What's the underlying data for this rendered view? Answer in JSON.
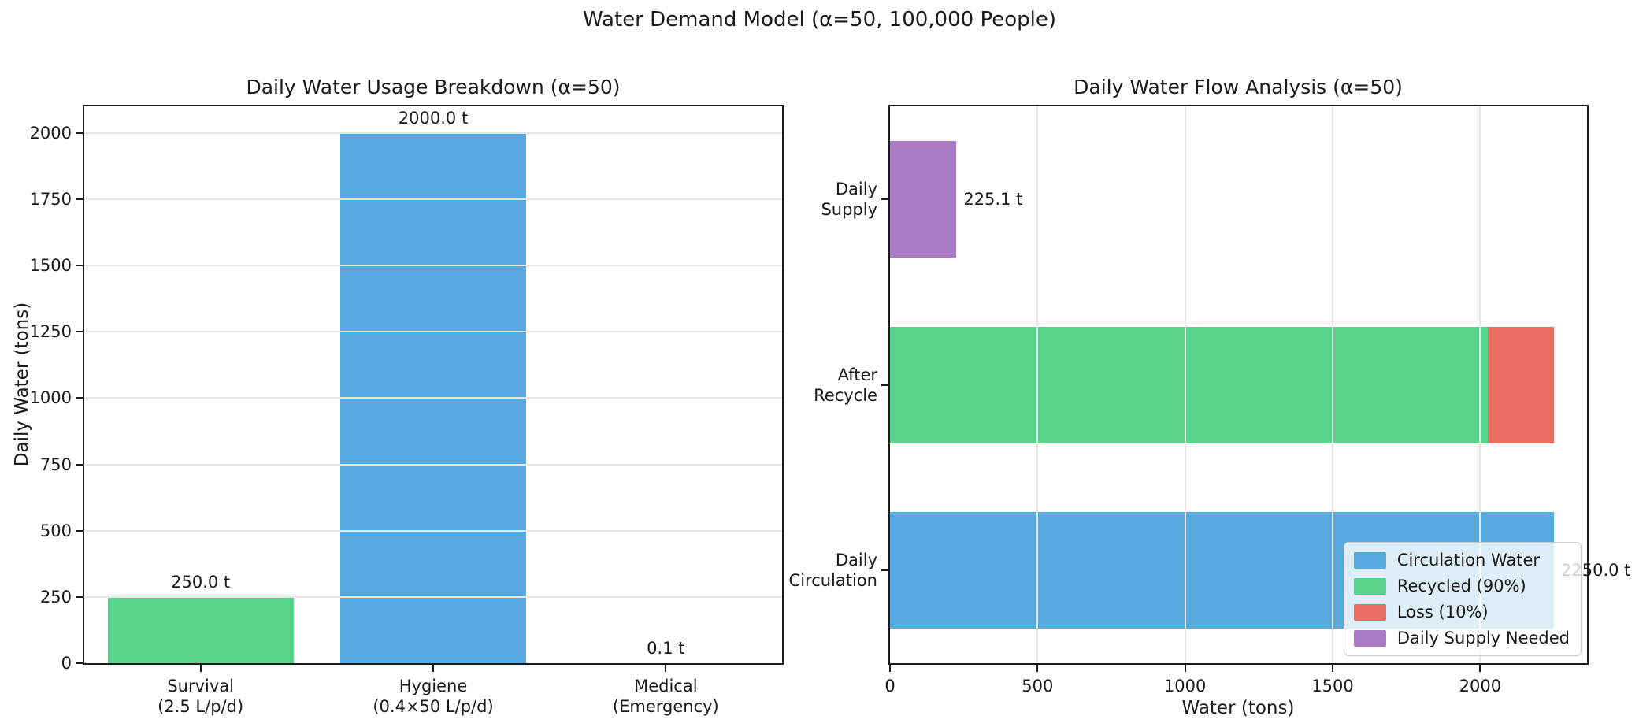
{
  "figure": {
    "title": "Water Demand Model (α=50, 100,000 People)"
  },
  "colors": {
    "blue": "#58A9DE",
    "green": "#57D38C",
    "red": "#E96F62",
    "purple": "#AA7BC4",
    "grid": "#E7E7E7",
    "spine": "#1a1a1a"
  },
  "chart_data": [
    {
      "type": "bar",
      "title": "Daily Water Usage Breakdown (α=50)",
      "xlabel": "",
      "ylabel": "Daily Water (tons)",
      "ylim": [
        0,
        2100
      ],
      "yticks": [
        0,
        250,
        500,
        750,
        1000,
        1250,
        1500,
        1750,
        2000
      ],
      "grid": "horizontal, drawn over bars",
      "categories": [
        "Survival\n(2.5 L/p/d)",
        "Hygiene\n(0.4×50 L/p/d)",
        "Medical\n(Emergency)"
      ],
      "values": [
        250.0,
        2000.0,
        0.1
      ],
      "bar_colors": [
        "#57D38C",
        "#58A9DE",
        "#E96F62"
      ],
      "value_labels": [
        "250.0 t",
        "2000.0 t",
        "0.1 t"
      ]
    },
    {
      "type": "barh",
      "title": "Daily Water Flow Analysis (α=50)",
      "xlabel": "Water (tons)",
      "ylabel": "",
      "xlim": [
        0,
        2362
      ],
      "xticks": [
        0,
        500,
        1000,
        1500,
        2000
      ],
      "grid": "vertical, drawn over bars",
      "rows": [
        {
          "category": "Daily\nSupply",
          "segments": [
            {
              "name": "Daily Supply Needed",
              "value": 225.1,
              "color": "#AA7BC4"
            }
          ],
          "total": 225.1,
          "end_label": "225.1 t"
        },
        {
          "category": "After\nRecycle",
          "segments": [
            {
              "name": "Recycled (90%)",
              "value": 2025.0,
              "color": "#57D38C"
            },
            {
              "name": "Loss (10%)",
              "value": 225.0,
              "color": "#E96F62"
            }
          ],
          "total": 2250.0,
          "end_label": ""
        },
        {
          "category": "Daily\nCirculation",
          "segments": [
            {
              "name": "Circulation Water",
              "value": 2250.0,
              "color": "#58A9DE"
            }
          ],
          "total": 2250.0,
          "end_label": "2250.0 t"
        }
      ],
      "legend": {
        "position": "lower right",
        "entries": [
          {
            "label": "Circulation Water",
            "color": "#58A9DE"
          },
          {
            "label": "Recycled (90%)",
            "color": "#57D38C"
          },
          {
            "label": "Loss (10%)",
            "color": "#E96F62"
          },
          {
            "label": "Daily Supply Needed",
            "color": "#AA7BC4"
          }
        ]
      }
    }
  ]
}
